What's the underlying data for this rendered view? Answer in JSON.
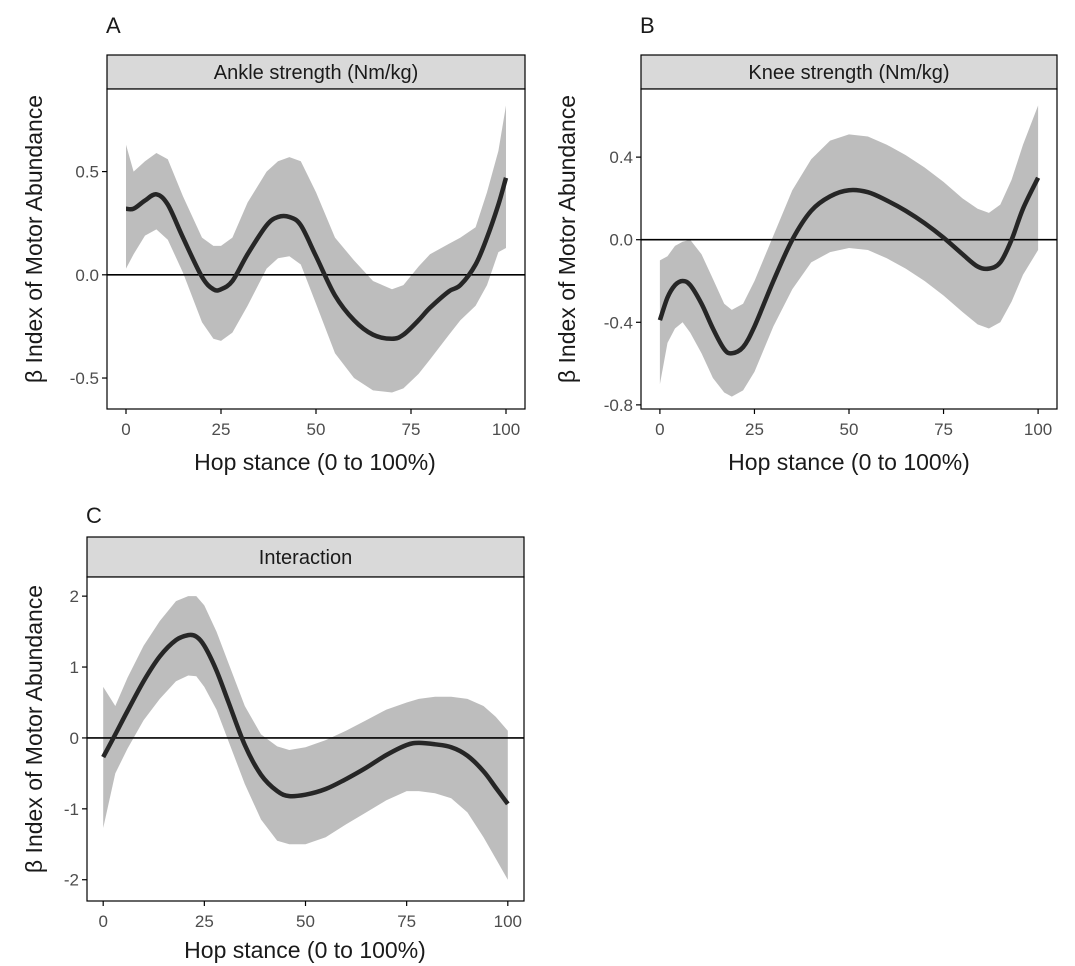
{
  "colors": {
    "ribbon": "#bdbdbd",
    "line": "#262626",
    "strip_fill": "#d9d9d9",
    "axis": "#000000",
    "tick_label": "#4d4d4d",
    "text": "#1a1a1a"
  },
  "chart_data": [
    {
      "type": "line",
      "panel_tag": "A",
      "title": "Ankle strength (Nm/kg)",
      "xlabel": "Hop stance (0 to 100%)",
      "ylabel": "β Index of Motor Abundance",
      "xlim": [
        -5,
        105
      ],
      "ylim": [
        -0.65,
        0.9
      ],
      "xticks": [
        0,
        25,
        50,
        75,
        100
      ],
      "xtick_labels": [
        "0",
        "25",
        "50",
        "75",
        "100"
      ],
      "yticks": [
        -0.5,
        0,
        0.5
      ],
      "ytick_labels": [
        "-0.5",
        "0.0",
        "0.5"
      ],
      "reference_line_y": 0,
      "grid": false,
      "series": [
        {
          "x": [
            0,
            2,
            5,
            8,
            11,
            15,
            20,
            23,
            25,
            28,
            32,
            37,
            40,
            43,
            46,
            50,
            55,
            60,
            65,
            70,
            73,
            77,
            80,
            85,
            88,
            92,
            95,
            98,
            100
          ],
          "y": [
            0.32,
            0.32,
            0.36,
            0.39,
            0.34,
            0.18,
            -0.01,
            -0.07,
            -0.07,
            -0.03,
            0.1,
            0.24,
            0.28,
            0.28,
            0.24,
            0.09,
            -0.1,
            -0.22,
            -0.29,
            -0.31,
            -0.29,
            -0.22,
            -0.16,
            -0.08,
            -0.05,
            0.05,
            0.18,
            0.34,
            0.47
          ],
          "lower": [
            0.03,
            0.1,
            0.19,
            0.22,
            0.17,
            0.01,
            -0.23,
            -0.31,
            -0.32,
            -0.28,
            -0.15,
            0.03,
            0.08,
            0.09,
            0.05,
            -0.14,
            -0.38,
            -0.5,
            -0.56,
            -0.57,
            -0.55,
            -0.48,
            -0.41,
            -0.29,
            -0.22,
            -0.15,
            -0.05,
            0.11,
            0.13
          ],
          "upper": [
            0.63,
            0.5,
            0.55,
            0.59,
            0.56,
            0.38,
            0.18,
            0.14,
            0.14,
            0.18,
            0.35,
            0.5,
            0.55,
            0.57,
            0.55,
            0.4,
            0.18,
            0.07,
            -0.03,
            -0.07,
            -0.05,
            0.04,
            0.1,
            0.15,
            0.18,
            0.23,
            0.4,
            0.6,
            0.82
          ]
        }
      ]
    },
    {
      "type": "line",
      "panel_tag": "B",
      "title": "Knee strength (Nm/kg)",
      "xlabel": "Hop stance (0 to 100%)",
      "ylabel": "β Index of Motor Abundance",
      "xlim": [
        -5,
        105
      ],
      "ylim": [
        -0.82,
        0.73
      ],
      "xticks": [
        0,
        25,
        50,
        75,
        100
      ],
      "xtick_labels": [
        "0",
        "25",
        "50",
        "75",
        "100"
      ],
      "yticks": [
        -0.8,
        -0.4,
        0,
        0.4
      ],
      "ytick_labels": [
        "-0.8",
        "-0.4",
        "0.0",
        "0.4"
      ],
      "reference_line_y": 0,
      "grid": false,
      "series": [
        {
          "x": [
            0,
            2,
            4,
            6,
            8,
            11,
            14,
            17,
            19,
            22,
            25,
            30,
            35,
            40,
            45,
            50,
            55,
            60,
            65,
            70,
            75,
            80,
            84,
            87,
            90,
            93,
            96,
            100
          ],
          "y": [
            -0.39,
            -0.28,
            -0.22,
            -0.2,
            -0.22,
            -0.31,
            -0.43,
            -0.53,
            -0.55,
            -0.52,
            -0.42,
            -0.2,
            0.0,
            0.14,
            0.21,
            0.24,
            0.23,
            0.19,
            0.14,
            0.08,
            0.01,
            -0.07,
            -0.13,
            -0.14,
            -0.11,
            0.0,
            0.15,
            0.3
          ],
          "lower": [
            -0.7,
            -0.5,
            -0.43,
            -0.4,
            -0.45,
            -0.55,
            -0.67,
            -0.74,
            -0.76,
            -0.73,
            -0.64,
            -0.42,
            -0.24,
            -0.11,
            -0.06,
            -0.04,
            -0.05,
            -0.09,
            -0.14,
            -0.2,
            -0.27,
            -0.35,
            -0.41,
            -0.43,
            -0.4,
            -0.3,
            -0.17,
            -0.05
          ],
          "upper": [
            -0.1,
            -0.08,
            -0.03,
            -0.01,
            0.0,
            -0.07,
            -0.19,
            -0.31,
            -0.34,
            -0.31,
            -0.2,
            0.02,
            0.24,
            0.39,
            0.48,
            0.51,
            0.5,
            0.46,
            0.41,
            0.35,
            0.28,
            0.2,
            0.15,
            0.13,
            0.17,
            0.29,
            0.46,
            0.65
          ]
        }
      ]
    },
    {
      "type": "line",
      "panel_tag": "C",
      "title": "Interaction",
      "xlabel": "Hop stance (0 to 100%)",
      "ylabel": "β Index of Motor Abundance",
      "xlim": [
        -4,
        104
      ],
      "ylim": [
        -2.3,
        2.27
      ],
      "xticks": [
        0,
        25,
        50,
        75,
        100
      ],
      "xtick_labels": [
        "0",
        "25",
        "50",
        "75",
        "100"
      ],
      "yticks": [
        -2,
        -1,
        0,
        1,
        2
      ],
      "ytick_labels": [
        "-2",
        "-1",
        "0",
        "1",
        "2"
      ],
      "reference_line_y": 0,
      "grid": false,
      "series": [
        {
          "x": [
            0,
            3,
            6,
            10,
            14,
            18,
            21,
            23,
            25,
            28,
            31,
            35,
            39,
            43,
            46,
            50,
            55,
            60,
            65,
            70,
            75,
            78,
            82,
            86,
            90,
            94,
            97,
            100
          ],
          "y": [
            -0.27,
            0.05,
            0.38,
            0.8,
            1.15,
            1.38,
            1.45,
            1.43,
            1.3,
            0.95,
            0.5,
            -0.1,
            -0.52,
            -0.75,
            -0.82,
            -0.8,
            -0.72,
            -0.58,
            -0.42,
            -0.24,
            -0.1,
            -0.07,
            -0.09,
            -0.13,
            -0.25,
            -0.47,
            -0.7,
            -0.93
          ],
          "lower": [
            -1.27,
            -0.5,
            -0.15,
            0.25,
            0.55,
            0.8,
            0.88,
            0.87,
            0.72,
            0.4,
            -0.05,
            -0.65,
            -1.15,
            -1.45,
            -1.5,
            -1.5,
            -1.4,
            -1.22,
            -1.05,
            -0.88,
            -0.75,
            -0.75,
            -0.78,
            -0.85,
            -1.05,
            -1.4,
            -1.7,
            -2.0
          ],
          "upper": [
            0.72,
            0.45,
            0.85,
            1.3,
            1.65,
            1.93,
            2.0,
            2.0,
            1.87,
            1.5,
            1.05,
            0.45,
            0.05,
            -0.12,
            -0.17,
            -0.13,
            -0.03,
            0.1,
            0.25,
            0.4,
            0.5,
            0.55,
            0.58,
            0.58,
            0.55,
            0.45,
            0.3,
            0.1
          ]
        }
      ]
    }
  ]
}
